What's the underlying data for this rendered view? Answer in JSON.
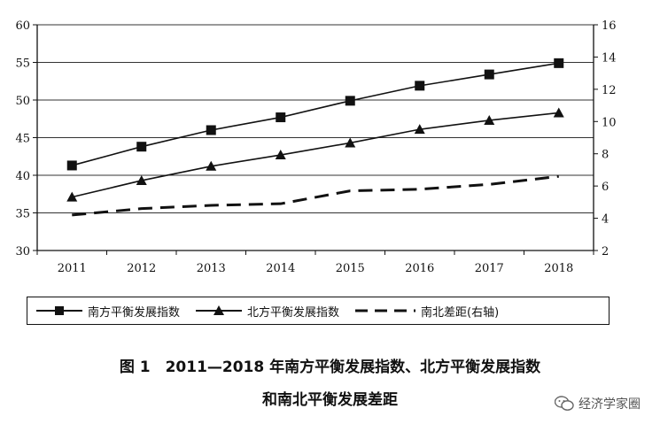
{
  "chart_data": {
    "type": "line",
    "categories": [
      "2011",
      "2012",
      "2013",
      "2014",
      "2015",
      "2016",
      "2017",
      "2018"
    ],
    "left_axis": {
      "ylim": [
        30,
        60
      ],
      "ticks": [
        30,
        35,
        40,
        45,
        50,
        55,
        60
      ]
    },
    "right_axis": {
      "ylim": [
        2,
        16
      ],
      "ticks": [
        2,
        4,
        6,
        8,
        10,
        12,
        14,
        16
      ]
    },
    "series": [
      {
        "name": "南方平衡发展指数",
        "axis": "left",
        "marker": "square",
        "style": "solid",
        "values": [
          41.3,
          43.8,
          46.0,
          47.7,
          49.9,
          51.9,
          53.4,
          54.9
        ]
      },
      {
        "name": "北方平衡发展指数",
        "axis": "left",
        "marker": "triangle",
        "style": "solid",
        "values": [
          37.1,
          39.3,
          41.2,
          42.7,
          44.3,
          46.1,
          47.3,
          48.3
        ]
      },
      {
        "name": "南北差距(右轴)",
        "axis": "right",
        "marker": "none",
        "style": "dashed",
        "values": [
          4.2,
          4.6,
          4.8,
          4.9,
          5.7,
          5.8,
          6.1,
          6.6
        ]
      }
    ],
    "grid": "horizontal",
    "legend_position": "bottom"
  },
  "caption": {
    "line1": "图 1　2011—2018 年南方平衡发展指数、北方平衡发展指数",
    "line2": "和南北平衡发展差距"
  },
  "watermark": "经济学家圈"
}
